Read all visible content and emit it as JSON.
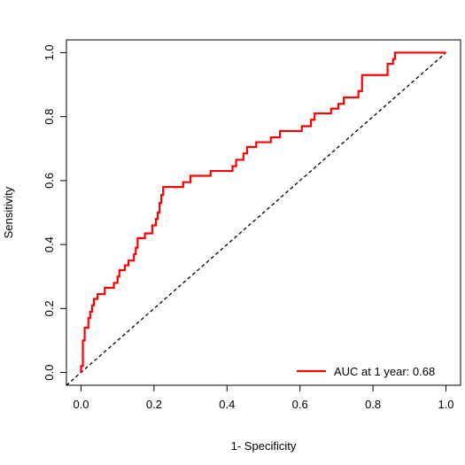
{
  "chart_data": {
    "type": "line",
    "title": "",
    "xlabel": "1- Specificity",
    "ylabel": "Sensitivity",
    "xlim": [
      -0.04,
      1.04
    ],
    "ylim": [
      -0.04,
      1.04
    ],
    "x_ticks": [
      0.0,
      0.2,
      0.4,
      0.6,
      0.8,
      1.0
    ],
    "y_ticks": [
      0.0,
      0.2,
      0.4,
      0.6,
      0.8,
      1.0
    ],
    "x_tick_labels": [
      "0.0",
      "0.2",
      "0.4",
      "0.6",
      "0.8",
      "1.0"
    ],
    "y_tick_labels": [
      "0.0",
      "0.2",
      "0.4",
      "0.6",
      "0.8",
      "1.0"
    ],
    "grid": false,
    "legend": {
      "placement": "bottom-right",
      "entries": [
        {
          "label": "AUC at 1 year: 0.68",
          "color": "#ff0000"
        }
      ]
    },
    "series": [
      {
        "name": "AUC at 1 year: 0.68",
        "color": "#ff0000",
        "style": "solid-step",
        "points": [
          [
            0.0,
            0.0
          ],
          [
            0.0,
            0.02
          ],
          [
            0.005,
            0.02
          ],
          [
            0.005,
            0.1
          ],
          [
            0.01,
            0.1
          ],
          [
            0.01,
            0.14
          ],
          [
            0.02,
            0.14
          ],
          [
            0.02,
            0.17
          ],
          [
            0.025,
            0.17
          ],
          [
            0.025,
            0.19
          ],
          [
            0.03,
            0.19
          ],
          [
            0.03,
            0.21
          ],
          [
            0.035,
            0.21
          ],
          [
            0.035,
            0.23
          ],
          [
            0.045,
            0.23
          ],
          [
            0.045,
            0.245
          ],
          [
            0.065,
            0.245
          ],
          [
            0.065,
            0.265
          ],
          [
            0.09,
            0.265
          ],
          [
            0.09,
            0.28
          ],
          [
            0.1,
            0.28
          ],
          [
            0.1,
            0.3
          ],
          [
            0.105,
            0.3
          ],
          [
            0.105,
            0.32
          ],
          [
            0.12,
            0.32
          ],
          [
            0.12,
            0.335
          ],
          [
            0.13,
            0.335
          ],
          [
            0.13,
            0.35
          ],
          [
            0.145,
            0.35
          ],
          [
            0.145,
            0.37
          ],
          [
            0.15,
            0.37
          ],
          [
            0.15,
            0.39
          ],
          [
            0.155,
            0.39
          ],
          [
            0.155,
            0.42
          ],
          [
            0.175,
            0.42
          ],
          [
            0.175,
            0.435
          ],
          [
            0.195,
            0.435
          ],
          [
            0.195,
            0.46
          ],
          [
            0.205,
            0.46
          ],
          [
            0.205,
            0.48
          ],
          [
            0.21,
            0.48
          ],
          [
            0.21,
            0.5
          ],
          [
            0.215,
            0.5
          ],
          [
            0.215,
            0.53
          ],
          [
            0.22,
            0.53
          ],
          [
            0.22,
            0.555
          ],
          [
            0.225,
            0.555
          ],
          [
            0.225,
            0.58
          ],
          [
            0.28,
            0.58
          ],
          [
            0.28,
            0.595
          ],
          [
            0.3,
            0.595
          ],
          [
            0.3,
            0.615
          ],
          [
            0.355,
            0.615
          ],
          [
            0.355,
            0.63
          ],
          [
            0.415,
            0.63
          ],
          [
            0.415,
            0.645
          ],
          [
            0.425,
            0.645
          ],
          [
            0.425,
            0.665
          ],
          [
            0.445,
            0.665
          ],
          [
            0.445,
            0.685
          ],
          [
            0.455,
            0.685
          ],
          [
            0.455,
            0.705
          ],
          [
            0.48,
            0.705
          ],
          [
            0.48,
            0.72
          ],
          [
            0.52,
            0.72
          ],
          [
            0.52,
            0.735
          ],
          [
            0.545,
            0.735
          ],
          [
            0.545,
            0.755
          ],
          [
            0.605,
            0.755
          ],
          [
            0.605,
            0.77
          ],
          [
            0.63,
            0.77
          ],
          [
            0.63,
            0.79
          ],
          [
            0.64,
            0.79
          ],
          [
            0.64,
            0.81
          ],
          [
            0.685,
            0.81
          ],
          [
            0.685,
            0.825
          ],
          [
            0.705,
            0.825
          ],
          [
            0.705,
            0.84
          ],
          [
            0.72,
            0.84
          ],
          [
            0.72,
            0.86
          ],
          [
            0.76,
            0.86
          ],
          [
            0.76,
            0.88
          ],
          [
            0.77,
            0.88
          ],
          [
            0.77,
            0.93
          ],
          [
            0.84,
            0.93
          ],
          [
            0.84,
            0.965
          ],
          [
            0.855,
            0.965
          ],
          [
            0.855,
            0.98
          ],
          [
            0.86,
            0.98
          ],
          [
            0.86,
            1.0
          ],
          [
            1.0,
            1.0
          ]
        ]
      }
    ],
    "reference_line": {
      "style": "dashed",
      "color": "#000000",
      "points": [
        [
          0.0,
          0.0
        ],
        [
          1.0,
          1.0
        ]
      ]
    }
  }
}
